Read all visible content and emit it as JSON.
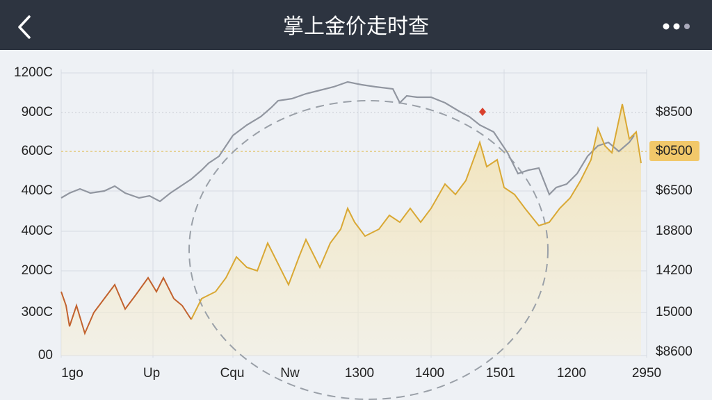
{
  "header": {
    "title": "掌上金价走时查"
  },
  "chart": {
    "left_axis_labels": [
      "1200C",
      "900C",
      "600C",
      "400C",
      "400C",
      "200C",
      "300C",
      "00"
    ],
    "right_axis_labels": [
      "$8500",
      "$0500",
      "$6500",
      "18800",
      "14200",
      "15000",
      "$8600"
    ],
    "x_axis_labels": [
      "1go",
      "Up",
      "Cqu",
      "Nw",
      "1300",
      "1400",
      "1501",
      "1200",
      "2950"
    ]
  }
}
